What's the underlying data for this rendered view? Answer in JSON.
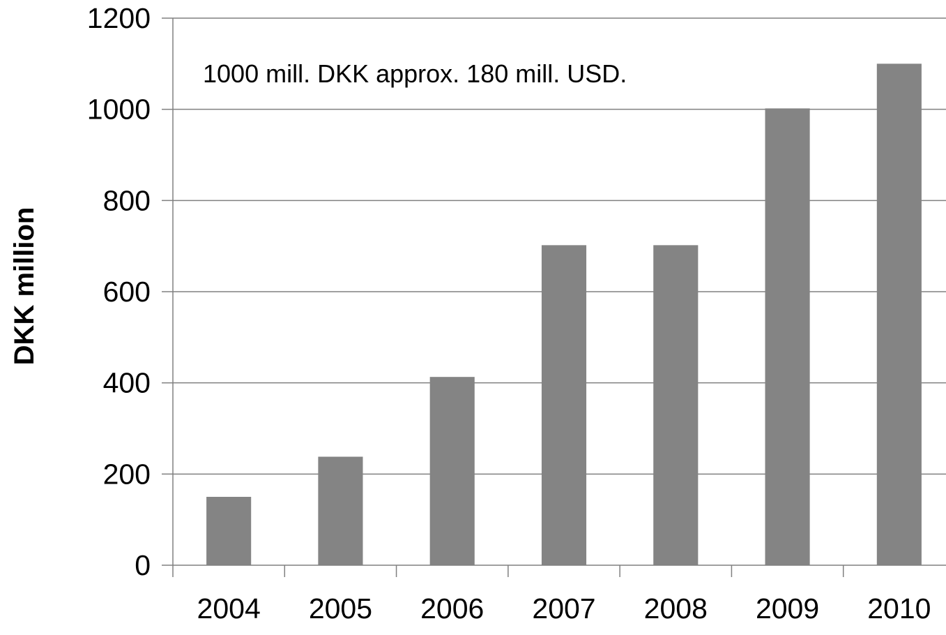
{
  "chart_data": {
    "type": "bar",
    "categories": [
      "2004",
      "2005",
      "2006",
      "2007",
      "2008",
      "2009",
      "2010"
    ],
    "values": [
      150,
      238,
      413,
      702,
      702,
      1002,
      1100
    ],
    "title": "",
    "xlabel": "",
    "ylabel": "DKK million",
    "ylim": [
      0,
      1200
    ],
    "yticks": [
      0,
      200,
      400,
      600,
      800,
      1000,
      1200
    ],
    "annotation": "1000 mill. DKK approx. 180 mill. USD.",
    "grid": true,
    "legend": "none",
    "colors": {
      "bar": "#848484",
      "grid": "#808080",
      "axis": "#808080"
    }
  }
}
